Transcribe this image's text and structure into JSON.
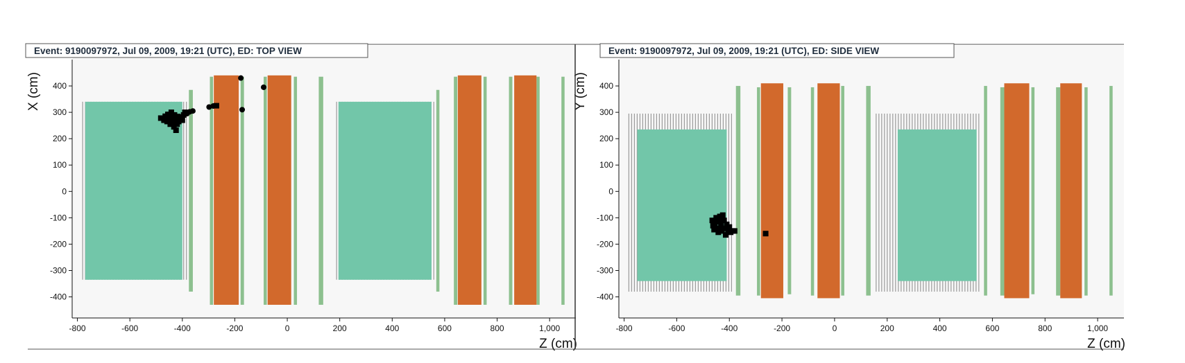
{
  "colors": {
    "background": "#f7f7f7",
    "calorimeter": "#72c6a9",
    "veto_plane": "#8dc08f",
    "magnet": "#d2692c",
    "fiber_plane": "#9a9a9a",
    "hit": "#000000"
  },
  "chart_data": [
    {
      "type": "scatter",
      "title": "Event: 9190097972, Jul 09, 2009, 19:21 (UTC), ED: TOP VIEW",
      "xlabel": "Z (cm)",
      "ylabel": "X (cm)",
      "xlim": [
        -820,
        1100
      ],
      "ylim": [
        -480,
        500
      ],
      "xticks": [
        -800,
        -600,
        -400,
        -200,
        0,
        200,
        400,
        600,
        800,
        1000
      ],
      "xtick_labels": [
        "-800",
        "-600",
        "-400",
        "-200",
        "0",
        "200",
        "400",
        "600",
        "800",
        "1,000"
      ],
      "yticks": [
        -400,
        -300,
        -200,
        -100,
        0,
        100,
        200,
        300,
        400
      ],
      "ytick_labels": [
        "-400",
        "-300",
        "-200",
        "-100",
        "0",
        "100",
        "200",
        "300",
        "400"
      ],
      "detector": {
        "calorimeters": [
          {
            "z": [
              -770,
              -400
            ],
            "v": [
              -335,
              340
            ]
          },
          {
            "z": [
              -395,
              -380
            ],
            "v": [
              -335,
              340
            ],
            "style": "fiber"
          },
          {
            "z": [
              -12,
              0
            ],
            "v": [
              0,
              0
            ],
            "style": "none"
          },
          {
            "z": [
              195,
              550
            ],
            "v": [
              -335,
              340
            ]
          },
          {
            "z": [
              550,
              565
            ],
            "v": [
              -335,
              340
            ],
            "style": "fiber"
          }
        ],
        "veto_planes": [
          {
            "z": [
              -375,
              -360
            ],
            "v": [
              -380,
              385
            ]
          },
          {
            "z": [
              -295,
              -283
            ],
            "v": [
              -430,
              435
            ]
          },
          {
            "z": [
              -178,
              -165
            ],
            "v": [
              -430,
              435
            ]
          },
          {
            "z": [
              -90,
              -78
            ],
            "v": [
              -430,
              435
            ]
          },
          {
            "z": [
              25,
              37
            ],
            "v": [
              -430,
              435
            ]
          },
          {
            "z": [
              120,
              137
            ],
            "v": [
              -430,
              435
            ]
          },
          {
            "z": [
              568,
              580
            ],
            "v": [
              -380,
              385
            ]
          },
          {
            "z": [
              635,
              648
            ],
            "v": [
              -430,
              435
            ]
          },
          {
            "z": [
              748,
              760
            ],
            "v": [
              -430,
              435
            ]
          },
          {
            "z": [
              845,
              858
            ],
            "v": [
              -430,
              435
            ]
          },
          {
            "z": [
              950,
              962
            ],
            "v": [
              -430,
              435
            ]
          },
          {
            "z": [
              1045,
              1057
            ],
            "v": [
              -430,
              435
            ]
          }
        ],
        "magnets": [
          {
            "z": [
              -280,
              -185
            ],
            "v": [
              -430,
              440
            ]
          },
          {
            "z": [
              -75,
              15
            ],
            "v": [
              -430,
              440
            ]
          },
          {
            "z": [
              650,
              740
            ],
            "v": [
              -430,
              440
            ]
          },
          {
            "z": [
              865,
              950
            ],
            "v": [
              -430,
              440
            ]
          }
        ],
        "fibers": [
          {
            "z": [
              -780,
              -405
            ],
            "v": [
              -335,
              340
            ]
          },
          {
            "z": [
              -395,
              -378
            ],
            "v": [
              -335,
              340
            ]
          },
          {
            "z": [
              188,
              545
            ],
            "v": [
              -335,
              340
            ]
          },
          {
            "z": [
              548,
              565
            ],
            "v": [
              -335,
              340
            ]
          }
        ]
      },
      "hits_squares": [
        {
          "z": -482,
          "v": 278
        },
        {
          "z": -470,
          "v": 270
        },
        {
          "z": -465,
          "v": 285
        },
        {
          "z": -458,
          "v": 265
        },
        {
          "z": -455,
          "v": 292
        },
        {
          "z": -450,
          "v": 275
        },
        {
          "z": -446,
          "v": 255
        },
        {
          "z": -442,
          "v": 300
        },
        {
          "z": -440,
          "v": 282
        },
        {
          "z": -436,
          "v": 262
        },
        {
          "z": -432,
          "v": 245
        },
        {
          "z": -430,
          "v": 290
        },
        {
          "z": -428,
          "v": 272
        },
        {
          "z": -424,
          "v": 232
        },
        {
          "z": -420,
          "v": 255
        },
        {
          "z": -418,
          "v": 284
        },
        {
          "z": -414,
          "v": 265
        },
        {
          "z": -410,
          "v": 275
        },
        {
          "z": -405,
          "v": 282
        },
        {
          "z": -400,
          "v": 270
        },
        {
          "z": -395,
          "v": 290
        },
        {
          "z": -390,
          "v": 300
        },
        {
          "z": -270,
          "v": 325
        }
      ],
      "hits_dots": [
        {
          "z": -382,
          "v": 295
        },
        {
          "z": -372,
          "v": 302
        },
        {
          "z": -360,
          "v": 305
        },
        {
          "z": -298,
          "v": 320
        },
        {
          "z": -282,
          "v": 324
        },
        {
          "z": -177,
          "v": 430
        },
        {
          "z": -172,
          "v": 310
        },
        {
          "z": -90,
          "v": 395
        },
        {
          "z": -425,
          "v": 262
        },
        {
          "z": -440,
          "v": 270
        }
      ]
    },
    {
      "type": "scatter",
      "title": "Event: 9190097972, Jul 09, 2009, 19:21 (UTC), ED: SIDE VIEW",
      "xlabel": "Z (cm)",
      "ylabel": "Y (cm)",
      "xlim": [
        -820,
        1100
      ],
      "ylim": [
        -480,
        500
      ],
      "xticks": [
        -800,
        -600,
        -400,
        -200,
        0,
        200,
        400,
        600,
        800,
        1000
      ],
      "xtick_labels": [
        "-800",
        "-600",
        "-400",
        "-200",
        "0",
        "200",
        "400",
        "600",
        "800",
        "1,000"
      ],
      "yticks": [
        -400,
        -300,
        -200,
        -100,
        0,
        100,
        200,
        300,
        400
      ],
      "ytick_labels": [
        "-400",
        "-300",
        "-200",
        "-100",
        "0",
        "100",
        "200",
        "300",
        "400"
      ],
      "detector": {
        "calorimeters": [
          {
            "z": [
              -750,
              -410
            ],
            "v": [
              -340,
              235
            ]
          },
          {
            "z": [
              240,
              540
            ],
            "v": [
              -340,
              235
            ]
          }
        ],
        "veto_planes": [
          {
            "z": [
              -375,
              -358
            ],
            "v": [
              -395,
              400
            ]
          },
          {
            "z": [
              -295,
              -283
            ],
            "v": [
              -395,
              395
            ]
          },
          {
            "z": [
              -178,
              -165
            ],
            "v": [
              -390,
              395
            ]
          },
          {
            "z": [
              -90,
              -78
            ],
            "v": [
              -395,
              395
            ]
          },
          {
            "z": [
              25,
              37
            ],
            "v": [
              -395,
              400
            ]
          },
          {
            "z": [
              120,
              137
            ],
            "v": [
              -395,
              400
            ]
          },
          {
            "z": [
              568,
              580
            ],
            "v": [
              -395,
              400
            ]
          },
          {
            "z": [
              630,
              645
            ],
            "v": [
              -395,
              395
            ]
          },
          {
            "z": [
              748,
              760
            ],
            "v": [
              -390,
              395
            ]
          },
          {
            "z": [
              842,
              858
            ],
            "v": [
              -395,
              395
            ]
          },
          {
            "z": [
              950,
              962
            ],
            "v": [
              -395,
              395
            ]
          },
          {
            "z": [
              1045,
              1057
            ],
            "v": [
              -395,
              400
            ]
          }
        ],
        "magnets": [
          {
            "z": [
              -280,
              -195
            ],
            "v": [
              -405,
              410
            ]
          },
          {
            "z": [
              -65,
              20
            ],
            "v": [
              -405,
              410
            ]
          },
          {
            "z": [
              645,
              740
            ],
            "v": [
              -405,
              410
            ]
          },
          {
            "z": [
              858,
              940
            ],
            "v": [
              -405,
              410
            ]
          }
        ],
        "fibers": [
          {
            "z": [
              -782,
              -385
            ],
            "v": [
              -380,
              295
            ]
          },
          {
            "z": [
              158,
              558
            ],
            "v": [
              -380,
              295
            ]
          }
        ]
      },
      "hits_squares": [
        {
          "z": -465,
          "v": -110
        },
        {
          "z": -462,
          "v": -130
        },
        {
          "z": -458,
          "v": -145
        },
        {
          "z": -455,
          "v": -120
        },
        {
          "z": -450,
          "v": -100
        },
        {
          "z": -446,
          "v": -140
        },
        {
          "z": -442,
          "v": -155
        },
        {
          "z": -440,
          "v": -115
        },
        {
          "z": -436,
          "v": -95
        },
        {
          "z": -432,
          "v": -130
        },
        {
          "z": -428,
          "v": -150
        },
        {
          "z": -425,
          "v": -90
        },
        {
          "z": -420,
          "v": -110
        },
        {
          "z": -418,
          "v": -140
        },
        {
          "z": -414,
          "v": -165
        },
        {
          "z": -410,
          "v": -125
        },
        {
          "z": -405,
          "v": -145
        },
        {
          "z": -400,
          "v": -135
        },
        {
          "z": -395,
          "v": -155
        },
        {
          "z": -388,
          "v": -150
        },
        {
          "z": -380,
          "v": -150
        },
        {
          "z": -262,
          "v": -160
        }
      ],
      "hits_dots": []
    }
  ]
}
